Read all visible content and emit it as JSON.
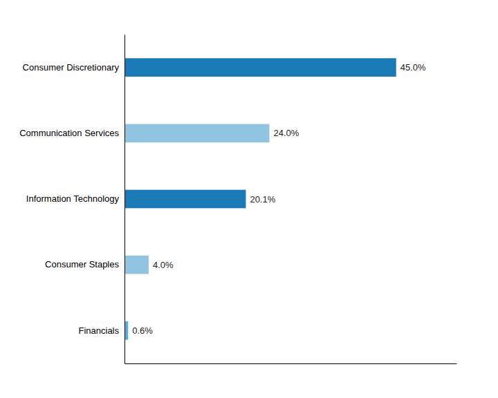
{
  "chart_data": {
    "type": "bar",
    "orientation": "horizontal",
    "categories": [
      "Consumer Discretionary",
      "Communication Services",
      "Information Technology",
      "Consumer Staples",
      "Financials"
    ],
    "values": [
      45.0,
      24.0,
      20.1,
      4.0,
      0.6
    ],
    "value_labels": [
      "45.0%",
      "24.0%",
      "20.1%",
      "4.0%",
      "0.6%"
    ],
    "colors": [
      "#1a7ab5",
      "#90c4e0",
      "#1a7ab5",
      "#90c4e0",
      "#5aace0"
    ],
    "xlim": [
      0,
      55
    ],
    "data_labels": true,
    "tick_labels": "y"
  }
}
